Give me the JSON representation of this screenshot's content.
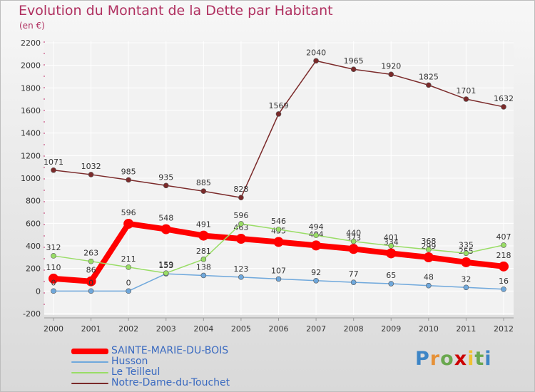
{
  "chart_data": {
    "type": "line",
    "title": "Evolution du Montant de la Dette par Habitant",
    "subtitle": "(en €)",
    "xlabel": "",
    "ylabel": "",
    "categories": [
      "2000",
      "2001",
      "2002",
      "2003",
      "2004",
      "2005",
      "2006",
      "2007",
      "2008",
      "2009",
      "2010",
      "2011",
      "2012"
    ],
    "ylim": [
      -200,
      2200
    ],
    "yticks": [
      -200,
      0,
      200,
      400,
      600,
      800,
      1000,
      1200,
      1400,
      1600,
      1800,
      2000,
      2200
    ],
    "grid": true,
    "legend_position": "bottom-left",
    "series": [
      {
        "name": "SAINTE-MARIE-DU-BOIS",
        "color": "#ff0000",
        "values": [
          110,
          86,
          596,
          548,
          491,
          463,
          435,
          404,
          373,
          334,
          299,
          255,
          218
        ]
      },
      {
        "name": "Husson",
        "color": "#6fa8dc",
        "values": [
          0,
          0,
          0,
          153,
          138,
          123,
          107,
          92,
          77,
          65,
          48,
          32,
          16
        ]
      },
      {
        "name": "Le Teilleul",
        "color": "#99dd66",
        "values": [
          312,
          263,
          211,
          159,
          281,
          596,
          546,
          494,
          440,
          401,
          368,
          335,
          407
        ]
      },
      {
        "name": "Notre-Dame-du-Touchet",
        "color": "#7b2a2a",
        "values": [
          1071,
          1032,
          985,
          935,
          885,
          828,
          1569,
          2040,
          1965,
          1920,
          1825,
          1701,
          1632
        ]
      }
    ]
  },
  "logo": {
    "letters": [
      "P",
      "r",
      "o",
      "x",
      "i",
      "t",
      "i"
    ],
    "colors": [
      "#3d85c6",
      "#e69138",
      "#6aa84f",
      "#cc0000",
      "#f1c232",
      "#6aa84f",
      "#3d85c6"
    ]
  }
}
